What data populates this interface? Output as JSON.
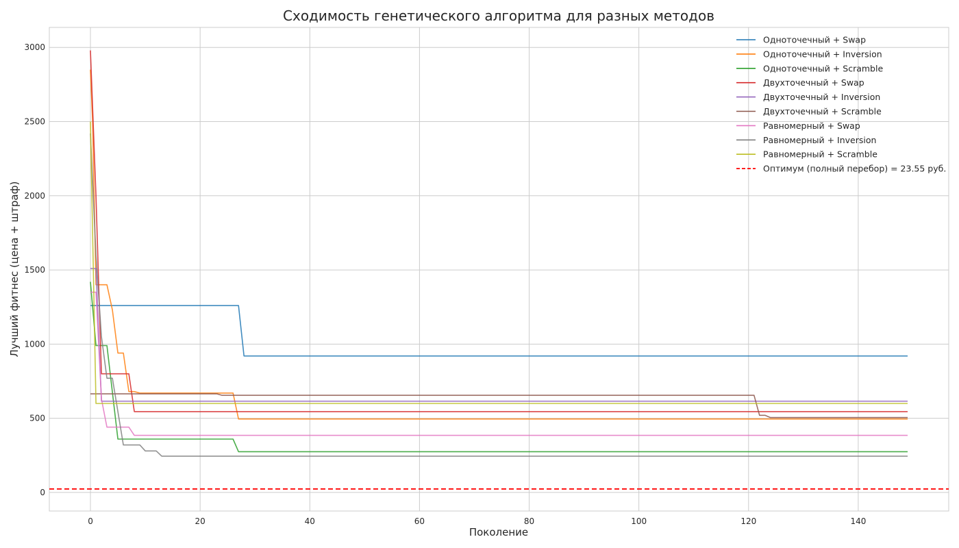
{
  "chart_data": {
    "type": "line",
    "title": "Сходимость генетического алгоритма для разных методов",
    "xlabel": "Поколение",
    "ylabel": "Лучший фитнес (цена + штраф)",
    "xlim": [
      -7.5,
      156.5
    ],
    "ylim": [
      -125,
      3135
    ],
    "xticks": [
      0,
      20,
      40,
      60,
      80,
      100,
      120,
      140
    ],
    "yticks": [
      0,
      500,
      1000,
      1500,
      2000,
      2500,
      3000
    ],
    "grid": true,
    "legend_position": "top-right",
    "series": [
      {
        "name": "Одноточечный + Swap",
        "color": "#1f77b4",
        "x": [
          0,
          27,
          28,
          149
        ],
        "y": [
          1260,
          1260,
          920,
          920
        ]
      },
      {
        "name": "Одноточечный + Inversion",
        "color": "#ff7f0e",
        "x": [
          0,
          0.4,
          1,
          3,
          4,
          5,
          6,
          7,
          8,
          9,
          26,
          27,
          149
        ],
        "y": [
          2850,
          2500,
          1400,
          1400,
          1230,
          940,
          940,
          680,
          680,
          670,
          670,
          495,
          495
        ]
      },
      {
        "name": "Одноточечный + Scramble",
        "color": "#2ca02c",
        "x": [
          0,
          1,
          3,
          5,
          26,
          27,
          149
        ],
        "y": [
          1420,
          990,
          990,
          360,
          360,
          275,
          275
        ]
      },
      {
        "name": "Двухточечный + Swap",
        "color": "#d62728",
        "x": [
          0,
          1,
          2,
          7,
          8,
          149
        ],
        "y": [
          2980,
          2000,
          800,
          800,
          545,
          545
        ]
      },
      {
        "name": "Двухточечный + Inversion",
        "color": "#9467bd",
        "x": [
          0,
          1,
          2,
          149
        ],
        "y": [
          1510,
          1510,
          615,
          615
        ]
      },
      {
        "name": "Двухточечный + Scramble",
        "color": "#8c564b",
        "x": [
          0,
          23,
          24,
          121,
          122,
          123,
          124,
          149
        ],
        "y": [
          665,
          665,
          655,
          655,
          520,
          520,
          505,
          505
        ]
      },
      {
        "name": "Равномерный + Swap",
        "color": "#e377c2",
        "x": [
          0,
          1,
          2,
          3,
          7,
          8,
          149
        ],
        "y": [
          1350,
          1350,
          630,
          440,
          440,
          385,
          385
        ]
      },
      {
        "name": "Равномерный + Inversion",
        "color": "#7f7f7f",
        "x": [
          0,
          1,
          2,
          3,
          4,
          6,
          9,
          10,
          12,
          13,
          149
        ],
        "y": [
          2420,
          1600,
          1050,
          770,
          770,
          320,
          320,
          280,
          280,
          245,
          245
        ]
      },
      {
        "name": "Равномерный + Scramble",
        "color": "#bcbd22",
        "x": [
          0,
          1,
          149
        ],
        "y": [
          2500,
          600,
          600
        ]
      }
    ],
    "reference_line": {
      "name": "Оптимум (полный перебор) = 23.55 руб.",
      "color": "#ff0000",
      "y": 23.55,
      "style": "dashed"
    }
  }
}
